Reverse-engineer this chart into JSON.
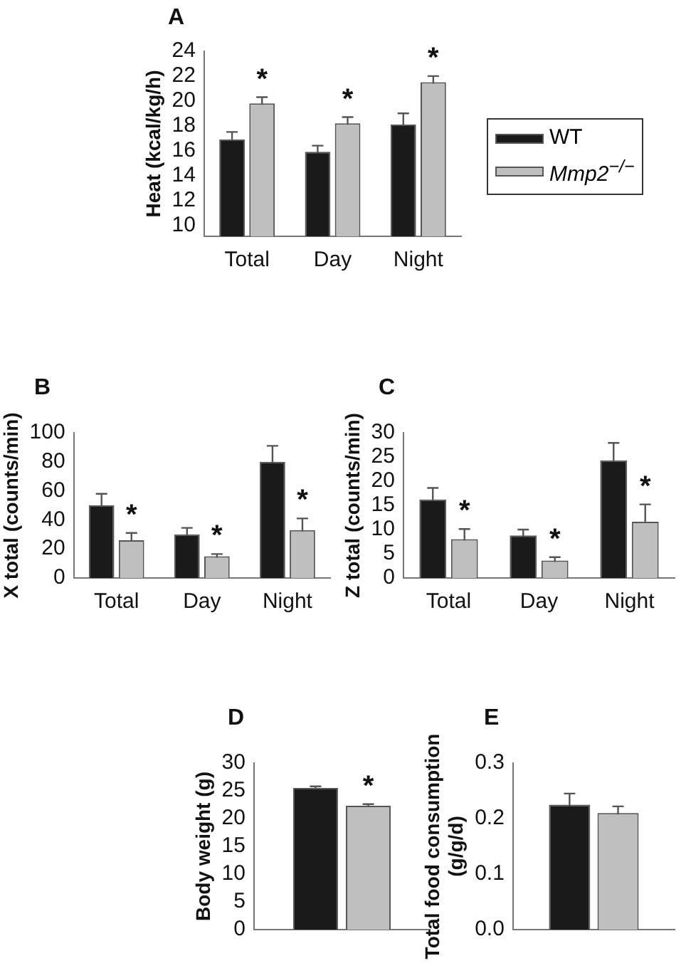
{
  "chart_data": [
    {
      "type": "bar",
      "title": "A",
      "ylabel": "Heat (kcal/kg/h)",
      "categories": [
        "Total",
        "Day",
        "Night"
      ],
      "ylim": [
        9.1,
        24
      ],
      "yticks": [
        10,
        12,
        14,
        16,
        18,
        20,
        22,
        24
      ],
      "grid": false,
      "legend": "right",
      "series": [
        {
          "name": "WT",
          "color": "#1a1a1a",
          "values": [
            16.9,
            15.9,
            18.1
          ],
          "errors": [
            0.6,
            0.5,
            0.9
          ]
        },
        {
          "name": "Mmp2$^{−/−}$",
          "color": "#bfbfbf",
          "values": [
            19.8,
            18.2,
            21.5
          ],
          "errors": [
            0.5,
            0.5,
            0.5
          ]
        }
      ],
      "annotations": [
        "*",
        "*",
        "*"
      ]
    },
    {
      "type": "bar",
      "title": "B",
      "ylabel": "X total (counts/min)",
      "categories": [
        "Total",
        "Day",
        "Night"
      ],
      "ylim": [
        0,
        100
      ],
      "yticks": [
        0,
        20,
        40,
        60,
        80,
        100
      ],
      "grid": false,
      "series": [
        {
          "color": "#1a1a1a",
          "values": [
            50,
            30,
            80
          ],
          "errors": [
            8,
            4.5,
            11
          ]
        },
        {
          "color": "#bfbfbf",
          "values": [
            26,
            15,
            33
          ],
          "errors": [
            5,
            1.5,
            8
          ]
        }
      ],
      "annotations": [
        "*",
        "*",
        "*"
      ]
    },
    {
      "type": "bar",
      "title": "C",
      "ylabel": "Z total (counts/min)",
      "categories": [
        "Total",
        "Day",
        "Night"
      ],
      "ylim": [
        0,
        30
      ],
      "yticks": [
        0,
        5,
        10,
        15,
        20,
        25,
        30
      ],
      "grid": false,
      "series": [
        {
          "color": "#1a1a1a",
          "values": [
            16.2,
            8.8,
            24.3
          ],
          "errors": [
            2.4,
            1.2,
            3.6
          ]
        },
        {
          "color": "#bfbfbf",
          "values": [
            8,
            3.6,
            11.6
          ],
          "errors": [
            2.1,
            0.7,
            3.6
          ]
        }
      ],
      "annotations": [
        "*",
        "*",
        "*"
      ]
    },
    {
      "type": "bar",
      "title": "D",
      "ylabel": "Body weight (g)",
      "categories": [
        null
      ],
      "ylim": [
        0,
        30
      ],
      "yticks": [
        0,
        5,
        10,
        15,
        20,
        25,
        30
      ],
      "grid": false,
      "series": [
        {
          "color": "#1a1a1a",
          "values": [
            25.5
          ],
          "errors": [
            0.3
          ]
        },
        {
          "color": "#bfbfbf",
          "values": [
            22.3
          ],
          "errors": [
            0.3
          ]
        }
      ],
      "annotations": [
        "*"
      ]
    },
    {
      "type": "bar",
      "title": "E",
      "ylabel": "Total food consumption (g/g/d)",
      "categories": [
        null
      ],
      "ylim": [
        0,
        0.3
      ],
      "yticks": [
        {
          "value": 0,
          "label": "0.0"
        },
        0.1,
        0.2,
        0.3
      ],
      "grid": false,
      "series": [
        {
          "color": "#1a1a1a",
          "values": [
            0.225
          ],
          "errors": [
            0.02
          ]
        },
        {
          "color": "#bfbfbf",
          "values": [
            0.21
          ],
          "errors": [
            0.012
          ]
        }
      ]
    }
  ]
}
